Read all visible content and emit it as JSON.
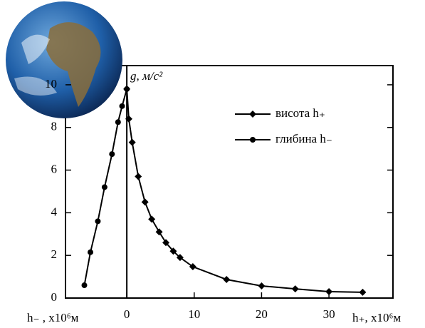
{
  "chart_data": {
    "type": "line",
    "y_label": "g, м/с²",
    "x_label_left": "h₋ , x10⁶м",
    "x_label_right": "h₊, x10⁶м",
    "xlim": [
      -9.1,
      39.5
    ],
    "ylim": [
      0,
      10.9
    ],
    "xticks": [
      0,
      10,
      20,
      30
    ],
    "yticks": [
      0,
      2,
      4,
      6,
      8,
      10
    ],
    "series": [
      {
        "name": "висота h₊",
        "color": "#000000",
        "marker": "diamond",
        "x": [
          0,
          0.3,
          0.8,
          1.7,
          2.7,
          3.7,
          4.8,
          5.8,
          6.9,
          7.9,
          9.8,
          14.8,
          20,
          25,
          30,
          35
        ],
        "values": [
          9.8,
          8.4,
          7.3,
          5.7,
          4.5,
          3.7,
          3.1,
          2.6,
          2.2,
          1.9,
          1.47,
          0.87,
          0.57,
          0.43,
          0.3,
          0.27
        ]
      },
      {
        "name": "глибина h₋",
        "color": "#000000",
        "marker": "circle",
        "x": [
          -6.3,
          -5.4,
          -4.3,
          -3.3,
          -2.2,
          -1.3,
          -0.7,
          0
        ],
        "values": [
          0.6,
          2.15,
          3.6,
          5.2,
          6.75,
          8.25,
          9.0,
          9.8
        ]
      }
    ]
  }
}
